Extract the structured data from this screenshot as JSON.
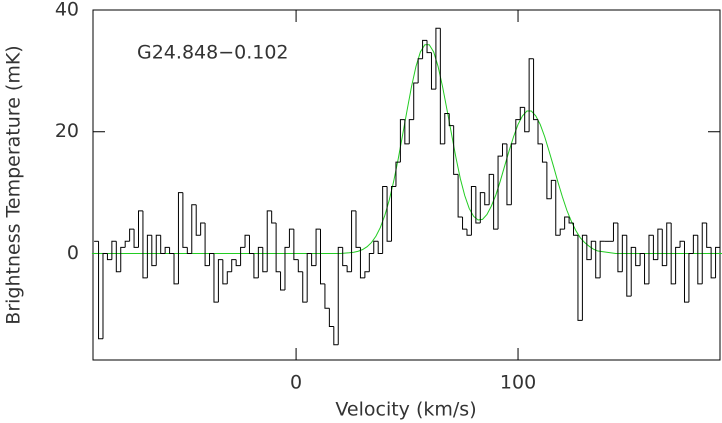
{
  "chart_data": {
    "type": "step",
    "annotation": "G24.848−0.102",
    "xlabel": "Velocity (km/s)",
    "ylabel": "Brightness Temperature (mK)",
    "xlim": [
      -91.5,
      191
    ],
    "ylim": [
      -17.5,
      40
    ],
    "xticks": [
      0,
      100
    ],
    "yticks": [
      0,
      20,
      40
    ],
    "series": [
      {
        "color": "#000000",
        "x": [
          -90,
          -88,
          -86,
          -84,
          -82,
          -80,
          -78,
          -76,
          -74,
          -72,
          -70,
          -68,
          -66,
          -64,
          -62,
          -60,
          -58,
          -56,
          -54,
          -52,
          -50,
          -48,
          -46,
          -44,
          -42,
          -40,
          -38,
          -36,
          -34,
          -32,
          -30,
          -28,
          -26,
          -24,
          -22,
          -20,
          -18,
          -16,
          -14,
          -12,
          -10,
          -8,
          -6,
          -4,
          -2,
          0,
          2,
          4,
          6,
          8,
          10,
          12,
          14,
          16,
          18,
          20,
          22,
          24,
          26,
          28,
          30,
          32,
          34,
          36,
          38,
          40,
          42,
          44,
          46,
          48,
          50,
          52,
          54,
          56,
          58,
          60,
          62,
          64,
          66,
          68,
          70,
          72,
          74,
          76,
          78,
          80,
          82,
          84,
          86,
          88,
          90,
          92,
          94,
          96,
          98,
          100,
          102,
          104,
          106,
          108,
          110,
          112,
          114,
          116,
          118,
          120,
          122,
          124,
          126,
          128,
          130,
          132,
          134,
          136,
          138,
          140,
          142,
          144,
          146,
          148,
          150,
          152,
          154,
          156,
          158,
          160,
          162,
          164,
          166,
          168,
          170,
          172,
          174,
          176,
          178,
          180,
          182,
          184,
          186,
          188,
          190
        ],
        "values": [
          2,
          -14,
          0,
          -1,
          2,
          -3,
          1,
          2,
          4,
          1,
          7,
          -4,
          3,
          -2,
          3,
          0,
          1,
          0,
          -5,
          10,
          1,
          0,
          8,
          3,
          5,
          -2,
          0,
          -8,
          -1,
          -5,
          -3,
          -1,
          -2,
          1,
          3,
          0,
          -4,
          1,
          -3,
          7,
          5,
          -3,
          -6,
          1,
          4,
          -1,
          -3,
          -8,
          0,
          -2,
          4,
          -5,
          -9,
          -12,
          -15,
          1,
          -2,
          -3,
          7,
          1,
          -4,
          -3,
          0,
          2,
          0,
          11,
          2,
          11,
          15,
          22,
          18,
          22,
          28,
          32,
          35,
          33,
          27,
          37,
          18,
          23,
          21,
          13,
          6,
          4,
          3,
          11,
          5,
          10,
          8,
          13,
          4,
          16,
          18,
          8,
          18,
          22,
          24,
          20,
          32,
          22,
          18,
          15,
          9,
          12,
          3,
          4,
          6,
          5,
          3,
          -11,
          3,
          -1,
          2,
          -4,
          2,
          2,
          2,
          5,
          -3,
          3,
          -7,
          1,
          -2,
          0,
          -5,
          3,
          -1,
          4,
          -2,
          5,
          -5,
          1,
          2,
          -8,
          0,
          3,
          -5,
          5,
          1,
          -4,
          1
        ]
      }
    ],
    "fit": {
      "color": "#22cc22",
      "x": [
        -92,
        20,
        22,
        24,
        26,
        28,
        30,
        32,
        34,
        36,
        38,
        40,
        42,
        44,
        46,
        48,
        50,
        52,
        54,
        56,
        58,
        60,
        62,
        64,
        66,
        68,
        70,
        72,
        74,
        76,
        78,
        80,
        82,
        84,
        86,
        88,
        90,
        92,
        94,
        96,
        98,
        100,
        102,
        104,
        106,
        108,
        110,
        112,
        114,
        116,
        118,
        120,
        122,
        124,
        126,
        128,
        130,
        132,
        134,
        136,
        138,
        140,
        142,
        144,
        192
      ],
      "values": [
        0,
        0,
        0.05,
        0.11,
        0.2,
        0.37,
        0.65,
        1.11,
        1.81,
        2.85,
        4.3,
        6.28,
        8.8,
        11.9,
        15.5,
        19.5,
        23.5,
        27.4,
        30.7,
        33.1,
        34.3,
        34.3,
        33.1,
        30.7,
        27.4,
        23.6,
        19.7,
        15.8,
        12.3,
        9.5,
        7.4,
        6.1,
        5.5,
        5.6,
        6.4,
        7.8,
        9.6,
        11.9,
        14.4,
        16.9,
        19.2,
        21.2,
        22.6,
        23.4,
        23.4,
        22.6,
        21.2,
        19.2,
        16.8,
        14.3,
        11.7,
        9.3,
        7.1,
        5.3,
        3.8,
        2.6,
        1.8,
        1.2,
        0.7,
        0.4,
        0.3,
        0.2,
        0.1,
        0,
        0
      ]
    }
  }
}
